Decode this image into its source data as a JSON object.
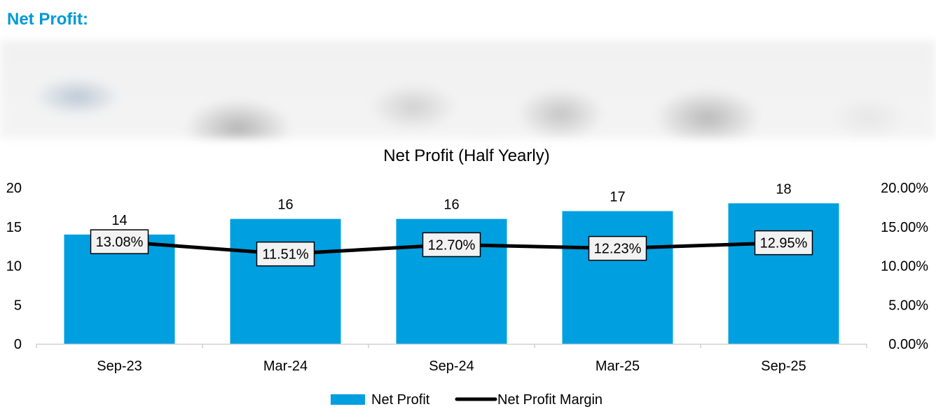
{
  "page": {
    "heading": "Net Profit:"
  },
  "colors": {
    "heading": "#0099d8",
    "bar": "#009fe0",
    "line": "#000000",
    "label_box_fill": "#f2f2f2",
    "label_box_border": "#000000",
    "axis": "#d0d0d0"
  },
  "chart_data": {
    "type": "bar",
    "title": "Net Profit (Half Yearly)",
    "categories": [
      "Sep-23",
      "Mar-24",
      "Sep-24",
      "Mar-25",
      "Sep-25"
    ],
    "series": [
      {
        "name": "Net Profit",
        "type": "bar",
        "axis": "left",
        "values": [
          14,
          16,
          16,
          17,
          18
        ],
        "data_labels": [
          "14",
          "16",
          "16",
          "17",
          "18"
        ]
      },
      {
        "name": "Net Profit Margin",
        "type": "line",
        "axis": "right",
        "values": [
          13.08,
          11.51,
          12.7,
          12.23,
          12.95
        ],
        "data_labels": [
          "13.08%",
          "11.51%",
          "12.70%",
          "12.23%",
          "12.95%"
        ]
      }
    ],
    "y_left": {
      "min": 0,
      "max": 20,
      "ticks": [
        "0",
        "5",
        "10",
        "15",
        "20"
      ]
    },
    "y_right": {
      "min": 0,
      "max": 20,
      "unit": "%",
      "ticks": [
        "0.00%",
        "5.00%",
        "10.00%",
        "15.00%",
        "20.00%"
      ]
    },
    "grid": false,
    "legend": "bottom",
    "legend_entries": [
      "Net Profit",
      "Net Profit Margin"
    ]
  }
}
